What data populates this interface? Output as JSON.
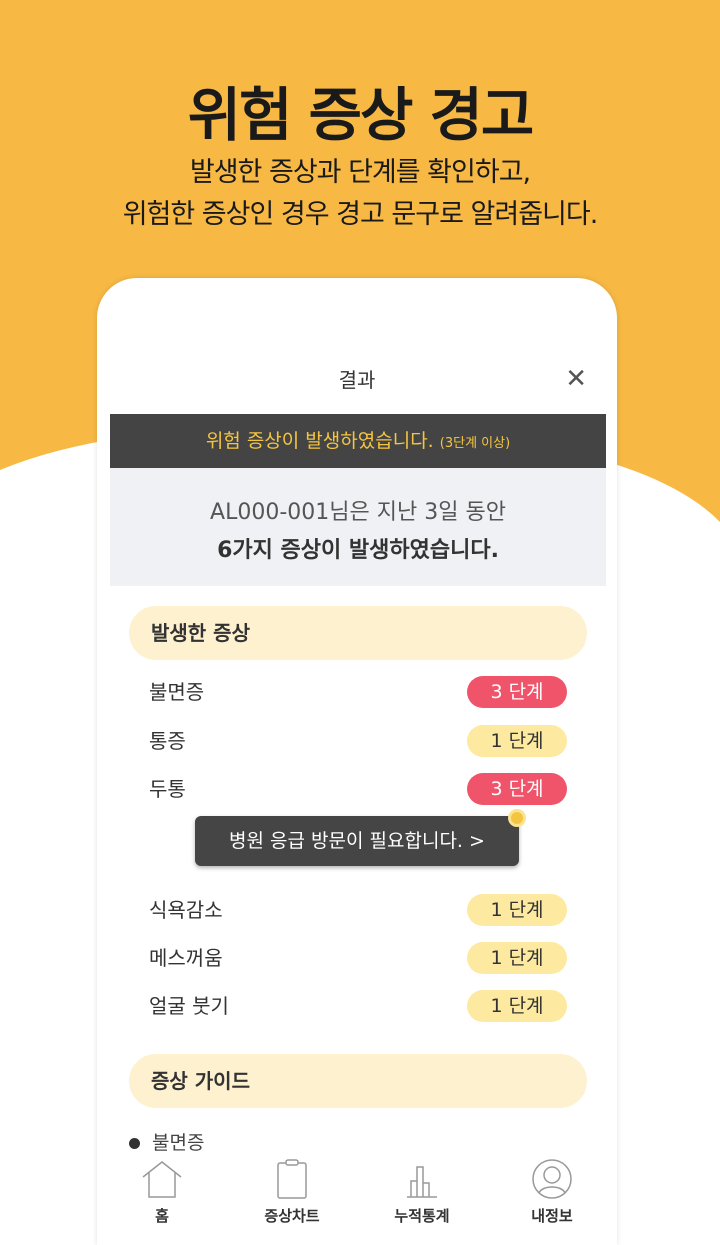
{
  "promo": {
    "title": "위험 증상 경고",
    "subtitle_line1": "발생한 증상과 단계를 확인하고,",
    "subtitle_line2": "위험한 증상인 경우 경고 문구로 알려줍니다."
  },
  "header": {
    "title": "결과",
    "close_icon": "close-icon"
  },
  "banner": {
    "text": "위험 증상이 발생하였습니다.",
    "note": "(3단계 이상)"
  },
  "summary": {
    "line1": "AL000-001님은 지난 3일 동안",
    "line2": "6가지 증상이 발생하였습니다."
  },
  "symptoms_section": {
    "title": "발생한 증상"
  },
  "symptoms": [
    {
      "name": "불면증",
      "level": "3 단계"
    },
    {
      "name": "통증",
      "level": "1 단계"
    },
    {
      "name": "두통",
      "level": "3 단계"
    },
    {
      "name": "식욕감소",
      "level": "1 단계"
    },
    {
      "name": "메스꺼움",
      "level": "1 단계"
    },
    {
      "name": "얼굴 붓기",
      "level": "1 단계"
    }
  ],
  "tooltip": {
    "text": "병원 응급 방문이 필요합니다.  >"
  },
  "guide_section": {
    "title": "증상 가이드",
    "first_item": "불면증"
  },
  "nav": [
    {
      "label": "홈",
      "icon": "home-icon"
    },
    {
      "label": "증상차트",
      "icon": "clipboard-icon"
    },
    {
      "label": "누적통계",
      "icon": "bar-chart-icon"
    },
    {
      "label": "내정보",
      "icon": "user-icon"
    }
  ],
  "colors": {
    "background": "#f7b944",
    "danger": "#f0546a",
    "mild": "#fde9a0",
    "banner": "#444444",
    "banner_text": "#f4c542"
  }
}
